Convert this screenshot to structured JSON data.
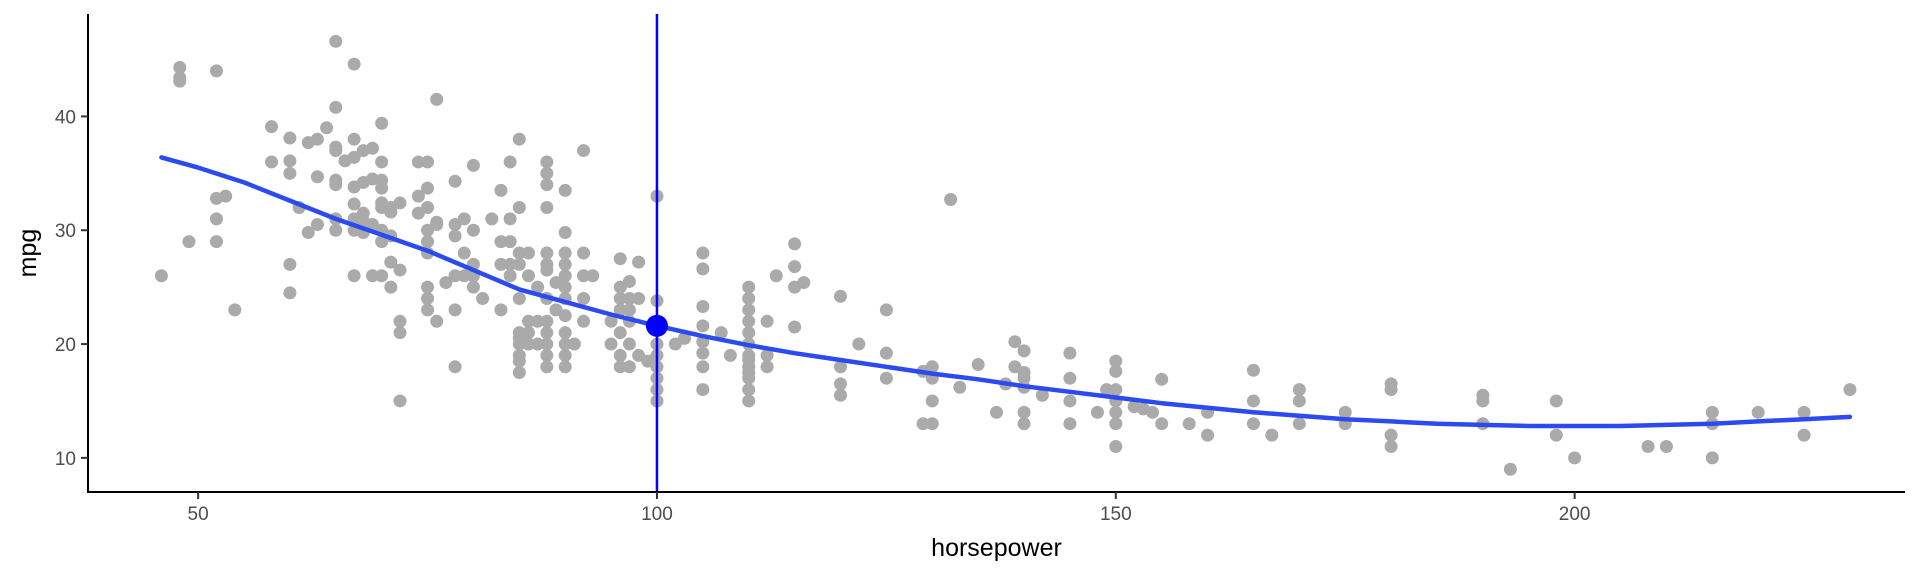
{
  "chart_data": {
    "type": "scatter",
    "xlabel": "horsepower",
    "ylabel": "mpg",
    "xlim": [
      38,
      236
    ],
    "ylim": [
      7,
      49
    ],
    "x_ticks": [
      50,
      100,
      150,
      200
    ],
    "y_ticks": [
      10,
      20,
      30,
      40
    ],
    "grid": false,
    "legend": "none",
    "colors": {
      "points": "#aaaaaa",
      "smooth": "#2b4af0",
      "vline": "#0000ff",
      "marker": "#0000ff",
      "axis": "#000000"
    },
    "points": [
      [
        46,
        26
      ],
      [
        48,
        44.3
      ],
      [
        48,
        43.4
      ],
      [
        48,
        43.1
      ],
      [
        49,
        29
      ],
      [
        52,
        44
      ],
      [
        52,
        32.8
      ],
      [
        52,
        31
      ],
      [
        52,
        29
      ],
      [
        53,
        33
      ],
      [
        54,
        23
      ],
      [
        58,
        36
      ],
      [
        58,
        39.1
      ],
      [
        60,
        38.1
      ],
      [
        60,
        36.1
      ],
      [
        60,
        35
      ],
      [
        60,
        27
      ],
      [
        60,
        24.5
      ],
      [
        61,
        32
      ],
      [
        62,
        37.7
      ],
      [
        62,
        29.8
      ],
      [
        63,
        38
      ],
      [
        63,
        34.7
      ],
      [
        63,
        30.5
      ],
      [
        64,
        39
      ],
      [
        65,
        46.6
      ],
      [
        65,
        40.8
      ],
      [
        65,
        37.3
      ],
      [
        65,
        37
      ],
      [
        65,
        34.4
      ],
      [
        65,
        34
      ],
      [
        65,
        31
      ],
      [
        65,
        30
      ],
      [
        66,
        36.1
      ],
      [
        67,
        44.6
      ],
      [
        67,
        38
      ],
      [
        67,
        36.4
      ],
      [
        67,
        33.8
      ],
      [
        67,
        32.3
      ],
      [
        67,
        31
      ],
      [
        67,
        30
      ],
      [
        67,
        26
      ],
      [
        68,
        37
      ],
      [
        68,
        34.2
      ],
      [
        68,
        31.5
      ],
      [
        68,
        30.8
      ],
      [
        68,
        29.8
      ],
      [
        69,
        37.2
      ],
      [
        69,
        34.5
      ],
      [
        69,
        30.5
      ],
      [
        69,
        26
      ],
      [
        70,
        39.4
      ],
      [
        70,
        36
      ],
      [
        70,
        34.4
      ],
      [
        70,
        33.7
      ],
      [
        70,
        32.4
      ],
      [
        70,
        32
      ],
      [
        70,
        30
      ],
      [
        70,
        29
      ],
      [
        70,
        26
      ],
      [
        71,
        32
      ],
      [
        71,
        31.6
      ],
      [
        71,
        29.5
      ],
      [
        71,
        27.2
      ],
      [
        71,
        25
      ],
      [
        72,
        32.4
      ],
      [
        72,
        26.5
      ],
      [
        72,
        22
      ],
      [
        72,
        21
      ],
      [
        72,
        15
      ],
      [
        74,
        36
      ],
      [
        74,
        33
      ],
      [
        74,
        31.5
      ],
      [
        75,
        36
      ],
      [
        75,
        33.7
      ],
      [
        75,
        32
      ],
      [
        75,
        30
      ],
      [
        75,
        29
      ],
      [
        75,
        28
      ],
      [
        75,
        25
      ],
      [
        75,
        24
      ],
      [
        75,
        23
      ],
      [
        76,
        41.5
      ],
      [
        76,
        30.7
      ],
      [
        76,
        30.5
      ],
      [
        76,
        22
      ],
      [
        77,
        25.4
      ],
      [
        78,
        34.3
      ],
      [
        78,
        30.5
      ],
      [
        78,
        29.5
      ],
      [
        78,
        26
      ],
      [
        78,
        23
      ],
      [
        78,
        18
      ],
      [
        79,
        31
      ],
      [
        79,
        28
      ],
      [
        79,
        26
      ],
      [
        80,
        35.7
      ],
      [
        80,
        30
      ],
      [
        80,
        27
      ],
      [
        80,
        26
      ],
      [
        80,
        25
      ],
      [
        81,
        24
      ],
      [
        82,
        31
      ],
      [
        83,
        33.5
      ],
      [
        83,
        29
      ],
      [
        83,
        27
      ],
      [
        83,
        23
      ],
      [
        84,
        36
      ],
      [
        84,
        31
      ],
      [
        84,
        29
      ],
      [
        84,
        27
      ],
      [
        84,
        26
      ],
      [
        85,
        38
      ],
      [
        85,
        32
      ],
      [
        85,
        28
      ],
      [
        85,
        27
      ],
      [
        85,
        24
      ],
      [
        85,
        21
      ],
      [
        85,
        20.5
      ],
      [
        85,
        20
      ],
      [
        85,
        19
      ],
      [
        85,
        18.5
      ],
      [
        85,
        17.5
      ],
      [
        86,
        28
      ],
      [
        86,
        26
      ],
      [
        86,
        22
      ],
      [
        86,
        21
      ],
      [
        86,
        20
      ],
      [
        87,
        25
      ],
      [
        87,
        22
      ],
      [
        87,
        20
      ],
      [
        88,
        36
      ],
      [
        88,
        35
      ],
      [
        88,
        34
      ],
      [
        88,
        32
      ],
      [
        88,
        28
      ],
      [
        88,
        27
      ],
      [
        88,
        26.5
      ],
      [
        88,
        24
      ],
      [
        88,
        22
      ],
      [
        88,
        21
      ],
      [
        88,
        20
      ],
      [
        88,
        19
      ],
      [
        88,
        18
      ],
      [
        89,
        25.4
      ],
      [
        89,
        23
      ],
      [
        90,
        33.5
      ],
      [
        90,
        29.8
      ],
      [
        90,
        28
      ],
      [
        90,
        27
      ],
      [
        90,
        26
      ],
      [
        90,
        25
      ],
      [
        90,
        24
      ],
      [
        90,
        22.5
      ],
      [
        90,
        21
      ],
      [
        90,
        20
      ],
      [
        90,
        19
      ],
      [
        90,
        18
      ],
      [
        91,
        20
      ],
      [
        92,
        37
      ],
      [
        92,
        28
      ],
      [
        92,
        26
      ],
      [
        92,
        24
      ],
      [
        92,
        22
      ],
      [
        93,
        26
      ],
      [
        95,
        22
      ],
      [
        95,
        20
      ],
      [
        96,
        27.5
      ],
      [
        96,
        25
      ],
      [
        96,
        24
      ],
      [
        96,
        23
      ],
      [
        96,
        21
      ],
      [
        96,
        19
      ],
      [
        96,
        18
      ],
      [
        97,
        25.5
      ],
      [
        97,
        24
      ],
      [
        97,
        23
      ],
      [
        97,
        22
      ],
      [
        97,
        20
      ],
      [
        97,
        18
      ],
      [
        98,
        27.2
      ],
      [
        98,
        24
      ],
      [
        98,
        19
      ],
      [
        99,
        18.5
      ],
      [
        100,
        33
      ],
      [
        100,
        23.8
      ],
      [
        100,
        22
      ],
      [
        100,
        20
      ],
      [
        100,
        19
      ],
      [
        100,
        18
      ],
      [
        100,
        17
      ],
      [
        100,
        16
      ],
      [
        100,
        15
      ],
      [
        102,
        20
      ],
      [
        103,
        20.5
      ],
      [
        105,
        28
      ],
      [
        105,
        26.6
      ],
      [
        105,
        23.3
      ],
      [
        105,
        21.6
      ],
      [
        105,
        20.2
      ],
      [
        105,
        19.2
      ],
      [
        105,
        18
      ],
      [
        105,
        16
      ],
      [
        107,
        21
      ],
      [
        108,
        19
      ],
      [
        110,
        25
      ],
      [
        110,
        24
      ],
      [
        110,
        23
      ],
      [
        110,
        22
      ],
      [
        110,
        21
      ],
      [
        110,
        20
      ],
      [
        110,
        19
      ],
      [
        110,
        18.6
      ],
      [
        110,
        18
      ],
      [
        110,
        17.5
      ],
      [
        110,
        17
      ],
      [
        110,
        16
      ],
      [
        110,
        15
      ],
      [
        112,
        22
      ],
      [
        112,
        19
      ],
      [
        112,
        18
      ],
      [
        113,
        26
      ],
      [
        115,
        28.8
      ],
      [
        115,
        26.8
      ],
      [
        115,
        25
      ],
      [
        115,
        21.5
      ],
      [
        116,
        25.4
      ],
      [
        120,
        24.2
      ],
      [
        120,
        18
      ],
      [
        120,
        16.5
      ],
      [
        120,
        15.5
      ],
      [
        122,
        20
      ],
      [
        125,
        23
      ],
      [
        125,
        19.2
      ],
      [
        125,
        17
      ],
      [
        129,
        13
      ],
      [
        129,
        17.6
      ],
      [
        130,
        18
      ],
      [
        130,
        17
      ],
      [
        130,
        15
      ],
      [
        130,
        13
      ],
      [
        132,
        32.7
      ],
      [
        133,
        16.2
      ],
      [
        135,
        18.2
      ],
      [
        137,
        14
      ],
      [
        138,
        16.5
      ],
      [
        139,
        20.2
      ],
      [
        139,
        18
      ],
      [
        140,
        19.4
      ],
      [
        140,
        17.5
      ],
      [
        140,
        17
      ],
      [
        140,
        16.2
      ],
      [
        140,
        14
      ],
      [
        140,
        13
      ],
      [
        142,
        15.5
      ],
      [
        145,
        19.2
      ],
      [
        145,
        17
      ],
      [
        145,
        15
      ],
      [
        145,
        13
      ],
      [
        148,
        14
      ],
      [
        149,
        16
      ],
      [
        150,
        18.5
      ],
      [
        150,
        17.6
      ],
      [
        150,
        16
      ],
      [
        150,
        15
      ],
      [
        150,
        14
      ],
      [
        150,
        13
      ],
      [
        150,
        11
      ],
      [
        152,
        14.5
      ],
      [
        153,
        14.3
      ],
      [
        154,
        14
      ],
      [
        155,
        16.9
      ],
      [
        155,
        13
      ],
      [
        158,
        13
      ],
      [
        160,
        14
      ],
      [
        160,
        12
      ],
      [
        165,
        17.7
      ],
      [
        165,
        15
      ],
      [
        165,
        13
      ],
      [
        167,
        12
      ],
      [
        170,
        16
      ],
      [
        170,
        15
      ],
      [
        170,
        13
      ],
      [
        175,
        14
      ],
      [
        175,
        13
      ],
      [
        180,
        16.5
      ],
      [
        180,
        16
      ],
      [
        180,
        12
      ],
      [
        180,
        11
      ],
      [
        190,
        15.5
      ],
      [
        190,
        15
      ],
      [
        190,
        13
      ],
      [
        193,
        9
      ],
      [
        198,
        15
      ],
      [
        198,
        12
      ],
      [
        200,
        10
      ],
      [
        208,
        11
      ],
      [
        210,
        11
      ],
      [
        215,
        14
      ],
      [
        215,
        13
      ],
      [
        215,
        10
      ],
      [
        220,
        14
      ],
      [
        225,
        14
      ],
      [
        225,
        12
      ],
      [
        230,
        16
      ]
    ],
    "smooth_line": [
      [
        46,
        36.4
      ],
      [
        50,
        35.5
      ],
      [
        55,
        34.2
      ],
      [
        60,
        32.6
      ],
      [
        65,
        31
      ],
      [
        70,
        29.6
      ],
      [
        75,
        28.2
      ],
      [
        80,
        26.5
      ],
      [
        85,
        24.8
      ],
      [
        90,
        23.7
      ],
      [
        95,
        22.6
      ],
      [
        100,
        21.6
      ],
      [
        105,
        20.7
      ],
      [
        110,
        19.9
      ],
      [
        115,
        19.2
      ],
      [
        120,
        18.6
      ],
      [
        125,
        18
      ],
      [
        130,
        17.4
      ],
      [
        135,
        16.9
      ],
      [
        140,
        16.3
      ],
      [
        145,
        15.8
      ],
      [
        150,
        15.3
      ],
      [
        155,
        14.8
      ],
      [
        160,
        14.4
      ],
      [
        165,
        14
      ],
      [
        170,
        13.7
      ],
      [
        175,
        13.4
      ],
      [
        180,
        13.2
      ],
      [
        185,
        13
      ],
      [
        190,
        12.9
      ],
      [
        195,
        12.8
      ],
      [
        200,
        12.8
      ],
      [
        205,
        12.8
      ],
      [
        210,
        12.9
      ],
      [
        215,
        13
      ],
      [
        220,
        13.2
      ],
      [
        225,
        13.4
      ],
      [
        230,
        13.6
      ]
    ],
    "vline_x": 100,
    "highlight_point": [
      100,
      21.6
    ]
  }
}
